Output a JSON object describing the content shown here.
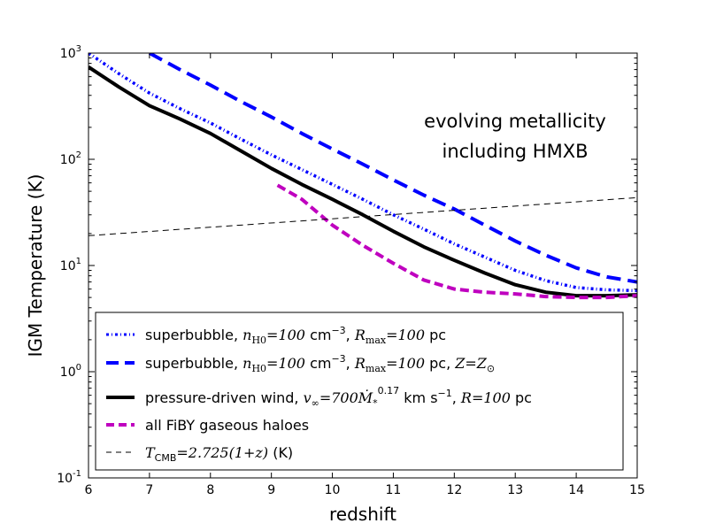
{
  "chart_data": {
    "type": "line",
    "title": "",
    "xlabel": "redshift",
    "ylabel": "IGM Temperature (K)",
    "xlim": [
      6,
      15
    ],
    "ylim": [
      0.1,
      1000
    ],
    "yscale": "log",
    "x_ticks": [
      "6",
      "7",
      "8",
      "9",
      "10",
      "11",
      "12",
      "13",
      "14",
      "15"
    ],
    "y_ticks": [
      {
        "base": "10",
        "exp": "-1",
        "value": 0.1
      },
      {
        "base": "10",
        "exp": "0",
        "value": 1
      },
      {
        "base": "10",
        "exp": "1",
        "value": 10
      },
      {
        "base": "10",
        "exp": "2",
        "value": 100
      },
      {
        "base": "10",
        "exp": "3",
        "value": 1000
      }
    ],
    "annotation": [
      "evolving metallicity",
      "including HMXB"
    ],
    "series": [
      {
        "name": "superbubble, nH0=100 cm-3, Rmax=100 pc",
        "color": "#0000ff",
        "style": "dashdot-dense",
        "x": [
          6.0,
          6.5,
          7.0,
          7.5,
          8.0,
          8.5,
          9.0,
          9.5,
          10.0,
          10.5,
          11.0,
          11.5,
          12.0,
          12.5,
          13.0,
          13.5,
          14.0,
          14.5,
          15.0
        ],
        "y": [
          1000,
          640,
          420,
          300,
          220,
          155,
          110,
          80,
          58,
          42,
          30,
          22,
          16,
          12,
          9,
          7.2,
          6.2,
          5.9,
          5.8
        ]
      },
      {
        "name": "superbubble, nH0=100 cm-3, Rmax=100 pc, Z=Zsun",
        "color": "#0000ff",
        "style": "dashed",
        "x": [
          7.0,
          7.5,
          8.0,
          8.5,
          9.0,
          9.5,
          10.0,
          10.5,
          11.0,
          11.5,
          12.0,
          12.5,
          13.0,
          13.5,
          14.0,
          14.5,
          15.0
        ],
        "y": [
          1000,
          700,
          500,
          350,
          250,
          175,
          125,
          90,
          64,
          46,
          34,
          24,
          17,
          12.5,
          9.5,
          7.8,
          7.0
        ]
      },
      {
        "name": "pressure-driven wind, v∞=700 M*^0.17 km s-1, R=100 pc",
        "color": "#000000",
        "style": "solid",
        "x": [
          6.0,
          6.5,
          7.0,
          7.5,
          8.0,
          8.5,
          9.0,
          9.5,
          10.0,
          10.5,
          11.0,
          11.5,
          12.0,
          12.5,
          13.0,
          13.5,
          14.0,
          14.5,
          15.0
        ],
        "y": [
          740,
          480,
          320,
          240,
          175,
          120,
          82,
          58,
          42,
          30,
          21,
          15,
          11.2,
          8.5,
          6.6,
          5.6,
          5.2,
          5.2,
          5.3
        ]
      },
      {
        "name": "all FiBY gaseous haloes",
        "color": "#bf00bf",
        "style": "dashed",
        "x": [
          9.1,
          9.5,
          10.0,
          10.5,
          11.0,
          11.5,
          12.0,
          12.5,
          13.0,
          13.5,
          14.0,
          14.5,
          15.0
        ],
        "y": [
          57,
          42,
          24,
          15.5,
          10.5,
          7.3,
          6.0,
          5.6,
          5.4,
          5.1,
          5.0,
          5.0,
          5.2
        ]
      },
      {
        "name": "T_CMB = 2.725(1+z) (K)",
        "color": "#000000",
        "style": "thin-dashed",
        "x": [
          6.0,
          15.0
        ],
        "y": [
          19.1,
          43.6
        ]
      }
    ],
    "legend": {
      "position": "lower-center",
      "entries": [
        {
          "text_a": "superbubble, ",
          "math_a": "n",
          "sub_a": "H0",
          "math_b": "=100",
          "text_b": " cm",
          "sup_b": "−3",
          "text_c": ", ",
          "math_c": "R",
          "sub_c": "max",
          "math_d": "=100",
          "text_d": " pc"
        },
        {
          "text_a": "superbubble, ",
          "math_a": "n",
          "sub_a": "H0",
          "math_b": "=100",
          "text_b": " cm",
          "sup_b": "−3",
          "text_c": ", ",
          "math_c": "R",
          "sub_c": "max",
          "math_d": "=100",
          "text_d": " pc, ",
          "math_e": "Z",
          "math_f": "=Z",
          "sub_f": "⊙"
        },
        {
          "text_a": "pressure-driven wind, ",
          "math_a": "v",
          "sub_a": "∞",
          "math_b": "=700",
          "math_m": "Ṁ",
          "sub_m": "*",
          "sup_m": "0.17",
          "text_b": " km s",
          "sup_b": "−1",
          "text_c": ", ",
          "math_c": "R",
          "math_d": "=100",
          "text_d": " pc"
        },
        {
          "text_a": "all FiBY gaseous haloes"
        },
        {
          "math_a": "T",
          "sub_a": "CMB",
          "math_b": "=2.725(1+z)",
          "text_b": " (K)"
        }
      ]
    }
  }
}
